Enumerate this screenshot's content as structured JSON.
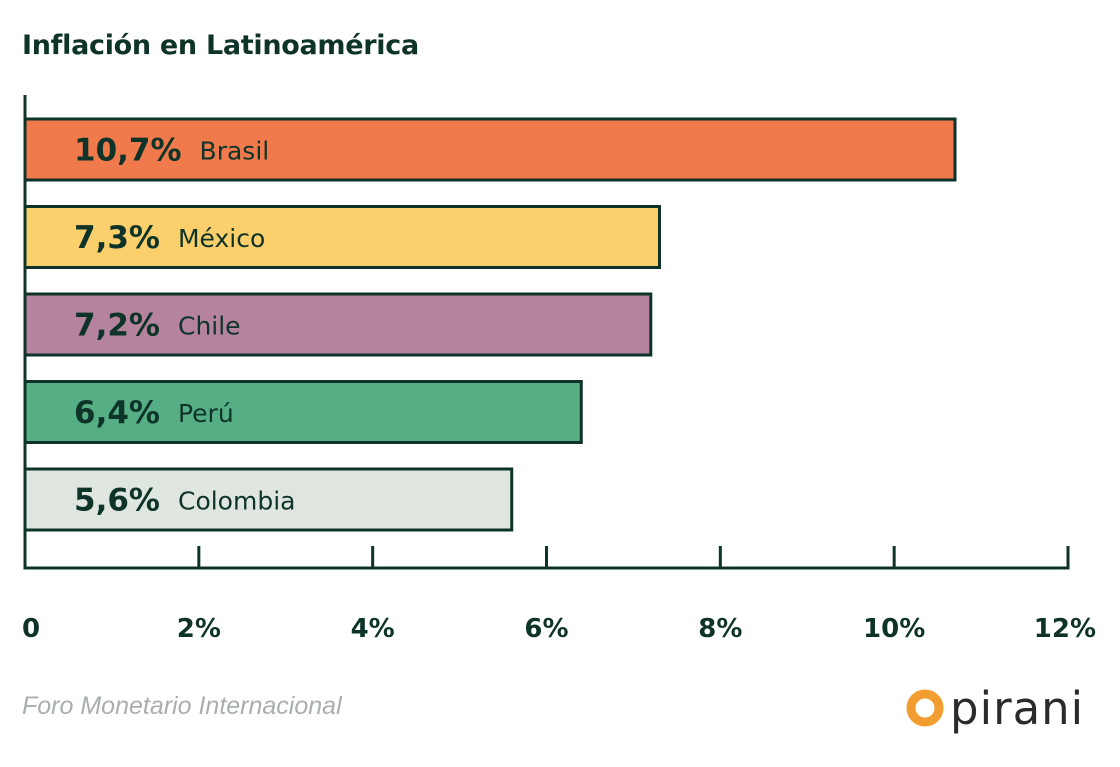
{
  "title": "Inflación en Latinoamérica",
  "source": "Foro Monetario Internacional",
  "logo": {
    "text": "pirani",
    "accent_color": "#f29d2f",
    "inner_color": "#ffffff"
  },
  "chart_data": {
    "type": "bar",
    "orientation": "horizontal",
    "title": "Inflación en Latinoamérica",
    "xlabel": "",
    "ylabel": "",
    "xlim": [
      0,
      12
    ],
    "x_ticks": [
      0,
      2,
      4,
      6,
      8,
      10,
      12
    ],
    "x_tick_labels": [
      "0",
      "2%",
      "4%",
      "6%",
      "8%",
      "10%",
      "12%"
    ],
    "grid": false,
    "bars": [
      {
        "category": "Brasil",
        "value": 10.7,
        "value_label": "10,7%",
        "color": "#f07a4b"
      },
      {
        "category": "México",
        "value": 7.3,
        "value_label": "7,3%",
        "color": "#fbcf6b"
      },
      {
        "category": "Chile",
        "value": 7.2,
        "value_label": "7,2%",
        "color": "#b5839e"
      },
      {
        "category": "Perú",
        "value": 6.4,
        "value_label": "6,4%",
        "color": "#56ae84"
      },
      {
        "category": "Colombia",
        "value": 5.6,
        "value_label": "5,6%",
        "color": "#dfe6df"
      }
    ],
    "axis_color": "#0e3328",
    "text_color": "#0e3328"
  }
}
